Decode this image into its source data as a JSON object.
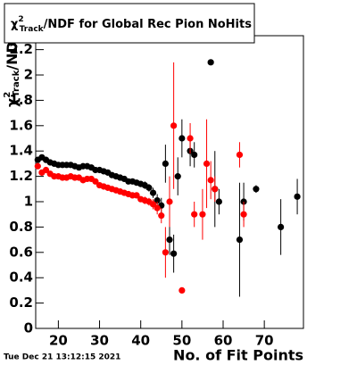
{
  "chart_data": {
    "type": "scatter",
    "title": {
      "symbol": "χ",
      "sup": "2",
      "sub": "Track",
      "text": "/NDF for Global Rec Pion NoHits"
    },
    "ylabel": {
      "symbol": "χ",
      "sup": "2",
      "sub": "Track",
      "text": "/NDF"
    },
    "xlabel": "No. of Fit Points",
    "date": "Tue Dec 21 13:12:15 2021",
    "xlim": [
      14.5,
      79.5
    ],
    "xticks": [
      20,
      30,
      40,
      50,
      60,
      70
    ],
    "ylim": [
      0,
      2.31
    ],
    "yticks": [
      0,
      0.2,
      0.4,
      0.6,
      0.8,
      1,
      1.2,
      1.4,
      1.6,
      1.8,
      2,
      2.2
    ],
    "series": [
      {
        "color": "#000000",
        "x": [
          15,
          16,
          17,
          18,
          19,
          20,
          21,
          22,
          23,
          24,
          25,
          26,
          27,
          28,
          29,
          30,
          31,
          32,
          33,
          34,
          35,
          36,
          37,
          38,
          39,
          40,
          41,
          42,
          43,
          44,
          45,
          46,
          47,
          48,
          49,
          50,
          52,
          53,
          57,
          58,
          59,
          64,
          65,
          68,
          74,
          78
        ],
        "values": [
          1.33,
          1.35,
          1.33,
          1.31,
          1.3,
          1.29,
          1.29,
          1.29,
          1.29,
          1.28,
          1.27,
          1.28,
          1.28,
          1.27,
          1.25,
          1.25,
          1.24,
          1.23,
          1.21,
          1.2,
          1.19,
          1.18,
          1.16,
          1.16,
          1.15,
          1.14,
          1.13,
          1.11,
          1.07,
          1.01,
          0.97,
          1.3,
          0.7,
          0.59,
          1.2,
          1.5,
          1.4,
          1.37,
          2.1,
          1.1,
          1.0,
          0.7,
          1.0,
          1.1,
          0.8,
          1.04
        ],
        "errors": [
          0.02,
          0.02,
          0.02,
          0.02,
          0.02,
          0.02,
          0.02,
          0.02,
          0.02,
          0.02,
          0.02,
          0.02,
          0.02,
          0.02,
          0.02,
          0.02,
          0.02,
          0.02,
          0.02,
          0.02,
          0.02,
          0.02,
          0.02,
          0.02,
          0.02,
          0.02,
          0.03,
          0.03,
          0.04,
          0.05,
          0.06,
          0.15,
          0.12,
          0.15,
          0.15,
          0.15,
          0.12,
          0.1,
          0.02,
          0.3,
          0.1,
          0.45,
          0.15,
          0.03,
          0.22,
          0.14
        ]
      },
      {
        "color": "#ff0000",
        "x": [
          15,
          16,
          17,
          18,
          19,
          20,
          21,
          22,
          23,
          24,
          25,
          26,
          27,
          28,
          29,
          30,
          31,
          32,
          33,
          34,
          35,
          36,
          37,
          38,
          39,
          40,
          41,
          42,
          43,
          44,
          45,
          46,
          47,
          48,
          50,
          52,
          53,
          55,
          56,
          57,
          58,
          64,
          65
        ],
        "values": [
          1.28,
          1.23,
          1.25,
          1.22,
          1.2,
          1.2,
          1.19,
          1.19,
          1.2,
          1.19,
          1.19,
          1.17,
          1.18,
          1.18,
          1.16,
          1.13,
          1.12,
          1.11,
          1.1,
          1.09,
          1.08,
          1.07,
          1.06,
          1.05,
          1.05,
          1.02,
          1.01,
          1.0,
          0.98,
          0.95,
          0.89,
          0.6,
          1.0,
          1.6,
          0.3,
          1.5,
          0.9,
          0.9,
          1.3,
          1.17,
          1.1,
          1.37,
          0.9
        ],
        "errors": [
          0.02,
          0.02,
          0.02,
          0.02,
          0.02,
          0.02,
          0.02,
          0.02,
          0.02,
          0.02,
          0.02,
          0.02,
          0.02,
          0.02,
          0.02,
          0.02,
          0.02,
          0.02,
          0.02,
          0.02,
          0.02,
          0.02,
          0.02,
          0.02,
          0.02,
          0.02,
          0.03,
          0.03,
          0.04,
          0.05,
          0.06,
          0.2,
          0.2,
          0.5,
          0.02,
          0.12,
          0.1,
          0.2,
          0.35,
          0.15,
          0.1,
          0.1,
          0.1
        ]
      }
    ]
  }
}
